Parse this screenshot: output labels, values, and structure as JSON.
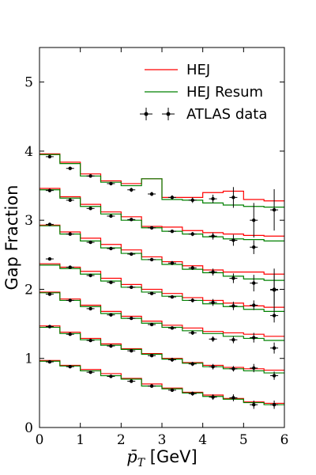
{
  "chart_data": {
    "type": "line",
    "title": "",
    "xlabel": "p̄",
    "xlabel_sub": "T",
    "xlabel_unit": " [GeV]",
    "ylabel": "Gap Fraction",
    "xlim": [
      0,
      6
    ],
    "ylim": [
      0,
      5.5
    ],
    "xticks": [
      "0",
      "1",
      "2",
      "3",
      "4",
      "5",
      "6"
    ],
    "yticks": [
      "0",
      "1",
      "2",
      "3",
      "4",
      "5"
    ],
    "grid": false,
    "legend_position": "top-right",
    "colors": {
      "hej": "#ff0000",
      "resum": "#008000",
      "data": "#000000"
    },
    "bin_edges": [
      0,
      0.5,
      1,
      1.5,
      2,
      2.5,
      3,
      3.5,
      4,
      4.5,
      5,
      5.5,
      6
    ],
    "series": [
      {
        "name": "HEJ",
        "role": "hej",
        "curves": [
          [
            0.97,
            0.9,
            0.84,
            0.78,
            0.71,
            0.63,
            0.57,
            0.51,
            0.47,
            0.42,
            0.37,
            0.35
          ],
          [
            1.47,
            1.38,
            1.29,
            1.21,
            1.14,
            1.07,
            1.0,
            0.94,
            0.9,
            0.87,
            0.85,
            0.83
          ],
          [
            1.96,
            1.86,
            1.77,
            1.68,
            1.61,
            1.54,
            1.48,
            1.44,
            1.39,
            1.37,
            1.35,
            1.32
          ],
          [
            2.37,
            2.32,
            2.26,
            2.16,
            2.07,
            2.0,
            1.94,
            1.88,
            1.84,
            1.8,
            1.76,
            1.74
          ],
          [
            2.93,
            2.83,
            2.74,
            2.65,
            2.57,
            2.47,
            2.4,
            2.34,
            2.28,
            2.25,
            2.25,
            2.22
          ],
          [
            3.46,
            3.34,
            3.23,
            3.12,
            3.05,
            2.91,
            2.9,
            2.85,
            2.82,
            2.8,
            2.78,
            2.77
          ],
          [
            3.96,
            3.84,
            3.67,
            3.57,
            3.53,
            3.6,
            3.33,
            3.33,
            3.4,
            3.42,
            3.3,
            3.28
          ]
        ]
      },
      {
        "name": "HEJ Resum",
        "role": "resum",
        "curves": [
          [
            0.96,
            0.89,
            0.82,
            0.75,
            0.7,
            0.6,
            0.56,
            0.5,
            0.45,
            0.41,
            0.36,
            0.33
          ],
          [
            1.45,
            1.36,
            1.27,
            1.19,
            1.13,
            1.06,
            0.99,
            0.93,
            0.88,
            0.85,
            0.82,
            0.79
          ],
          [
            1.95,
            1.84,
            1.75,
            1.65,
            1.58,
            1.51,
            1.45,
            1.4,
            1.36,
            1.32,
            1.29,
            1.26
          ],
          [
            2.35,
            2.3,
            2.22,
            2.12,
            2.03,
            1.96,
            1.9,
            1.84,
            1.79,
            1.75,
            1.71,
            1.68
          ],
          [
            2.92,
            2.8,
            2.7,
            2.6,
            2.52,
            2.43,
            2.36,
            2.29,
            2.24,
            2.19,
            2.15,
            2.13
          ],
          [
            3.44,
            3.32,
            3.2,
            3.09,
            3.0,
            2.89,
            2.84,
            2.8,
            2.76,
            2.73,
            2.72,
            2.7
          ],
          [
            3.95,
            3.82,
            3.64,
            3.55,
            3.5,
            3.6,
            3.3,
            3.29,
            3.25,
            3.22,
            3.2,
            3.19
          ]
        ]
      },
      {
        "name": "ATLAS data",
        "role": "data",
        "x": [
          0.25,
          0.75,
          1.25,
          1.75,
          2.25,
          2.75,
          3.25,
          3.75,
          4.25,
          4.75,
          5.25,
          5.75
        ],
        "curves": [
          {
            "y": [
              0.95,
              0.88,
              0.8,
              0.74,
              0.67,
              0.6,
              0.54,
              0.49,
              0.44,
              0.43,
              0.33,
              0.33
            ],
            "err": [
              0.02,
              0.02,
              0.02,
              0.02,
              0.02,
              0.02,
              0.02,
              0.03,
              0.04,
              0.05,
              0.06,
              0.06
            ]
          },
          {
            "y": [
              1.46,
              1.35,
              1.26,
              1.18,
              1.11,
              1.04,
              0.98,
              0.92,
              0.88,
              0.85,
              0.86,
              0.75
            ],
            "err": [
              0.02,
              0.02,
              0.02,
              0.02,
              0.02,
              0.02,
              0.03,
              0.03,
              0.04,
              0.04,
              0.06,
              0.06
            ]
          },
          {
            "y": [
              1.93,
              1.84,
              1.72,
              1.63,
              1.58,
              1.49,
              1.44,
              1.37,
              1.28,
              1.27,
              1.3,
              1.15
            ],
            "err": [
              0.02,
              0.02,
              0.02,
              0.02,
              0.02,
              0.02,
              0.02,
              0.03,
              0.04,
              0.05,
              0.07,
              0.08
            ]
          },
          {
            "y": [
              2.44,
              2.32,
              2.2,
              2.1,
              2.03,
              1.94,
              1.89,
              1.84,
              1.81,
              1.76,
              1.77,
              1.62
            ],
            "err": [
              0.02,
              0.02,
              0.02,
              0.02,
              0.02,
              0.02,
              0.02,
              0.03,
              0.05,
              0.06,
              0.07,
              0.1
            ]
          },
          {
            "y": [
              2.94,
              2.8,
              2.68,
              2.59,
              2.51,
              2.43,
              2.38,
              2.31,
              2.25,
              2.16,
              2.09,
              1.99
            ],
            "err": [
              0.02,
              0.02,
              0.02,
              0.02,
              0.02,
              0.02,
              0.03,
              0.03,
              0.05,
              0.07,
              0.12,
              0.22
            ]
          },
          {
            "y": [
              3.43,
              3.29,
              3.17,
              3.06,
              3.01,
              2.89,
              2.84,
              2.8,
              2.77,
              2.71,
              2.61,
              2.0
            ],
            "err": [
              0.02,
              0.02,
              0.02,
              0.02,
              0.02,
              0.02,
              0.02,
              0.03,
              0.05,
              0.08,
              0.1,
              0.3
            ]
          },
          {
            "y": [
              3.92,
              3.75,
              3.64,
              3.53,
              3.44,
              3.38,
              3.33,
              3.29,
              3.31,
              3.33,
              3.0,
              3.15
            ],
            "err": [
              0.02,
              0.02,
              0.02,
              0.02,
              0.03,
              0.03,
              0.03,
              0.04,
              0.06,
              0.15,
              0.25,
              0.3
            ]
          }
        ]
      }
    ]
  }
}
